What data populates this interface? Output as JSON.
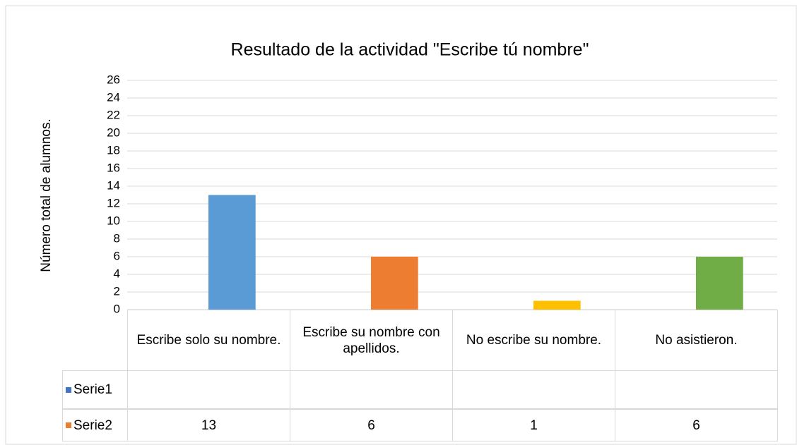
{
  "chart_data": {
    "type": "bar",
    "title": "Resultado de la actividad \"Escribe tú nombre\"",
    "y_label": "Número total de alumnos.",
    "categories": [
      "Escribe solo su nombre.",
      "Escribe su nombre con apellidos.",
      "No escribe su nombre.",
      "No asistieron."
    ],
    "series": [
      {
        "name": "Serie1",
        "color": "#4472c4",
        "values": [
          null,
          null,
          null,
          null
        ]
      },
      {
        "name": "Serie2",
        "color": "#ed7d31",
        "values": [
          13,
          6,
          1,
          6
        ],
        "point_colors": [
          "#5b9bd5",
          "#ed7d31",
          "#ffc000",
          "#70ad47"
        ]
      }
    ],
    "ylim": [
      0,
      26
    ],
    "yticks": [
      0,
      2,
      4,
      6,
      8,
      10,
      12,
      14,
      16,
      18,
      20,
      22,
      24,
      26
    ],
    "grid": true,
    "data_table": true
  }
}
